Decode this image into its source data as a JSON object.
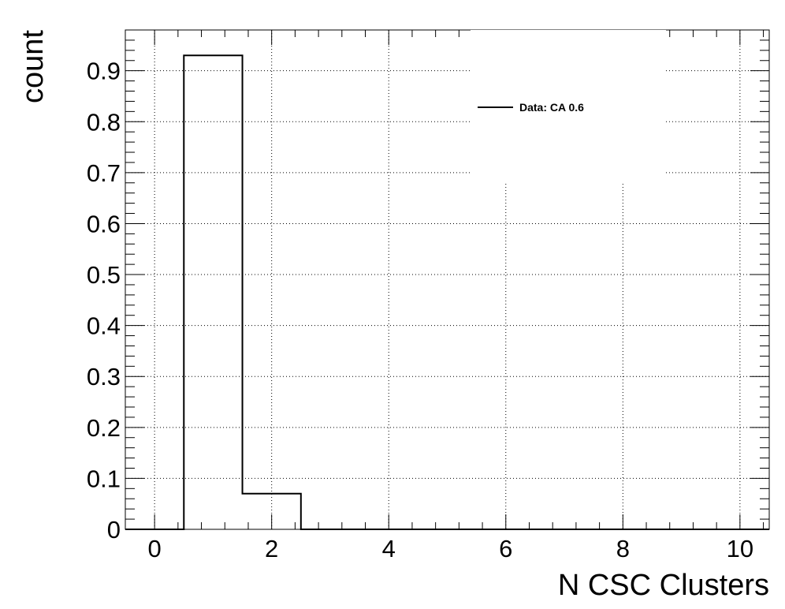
{
  "chart_data": {
    "type": "bar",
    "style": "step-histogram",
    "xlabel": "N CSC Clusters",
    "ylabel": "count",
    "xlim": [
      -0.5,
      10.5
    ],
    "ylim": [
      0,
      0.98
    ],
    "xticks": [
      0,
      2,
      4,
      6,
      8,
      10
    ],
    "yticks": [
      0,
      0.1,
      0.2,
      0.3,
      0.4,
      0.5,
      0.6,
      0.7,
      0.8,
      0.9
    ],
    "grid": true,
    "legend_position": "top-right",
    "series": [
      {
        "name": "Data: CA 0.6",
        "color": "#000000",
        "bin_edges": [
          -0.5,
          0.5,
          1.5,
          2.5,
          3.5,
          4.5,
          5.5,
          6.5,
          7.5,
          8.5,
          9.5,
          10.5
        ],
        "values": [
          0,
          0.93,
          0.07,
          0,
          0,
          0,
          0,
          0,
          0,
          0,
          0
        ]
      }
    ]
  }
}
